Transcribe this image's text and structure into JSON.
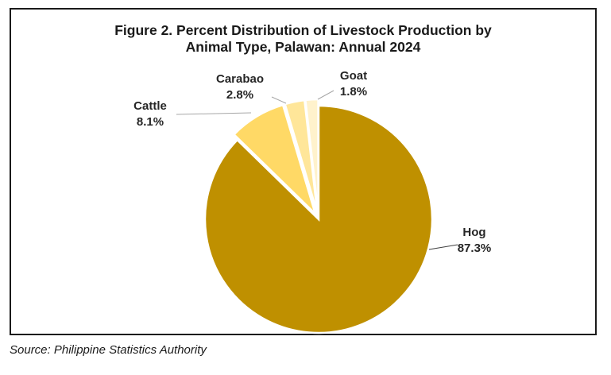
{
  "chart_data": {
    "type": "pie",
    "title_lines": [
      "Figure 2. Percent Distribution of Livestock Production by",
      "Animal Type, Palawan: Annual 2024"
    ],
    "slices": [
      {
        "label": "Hog",
        "value": 87.3,
        "value_label": "87.3%",
        "color": "#BF9000",
        "exploded": false
      },
      {
        "label": "Cattle",
        "value": 8.1,
        "value_label": "8.1%",
        "color": "#FFD966",
        "exploded": true
      },
      {
        "label": "Carabao",
        "value": 2.8,
        "value_label": "2.8%",
        "color": "#FFE699",
        "exploded": true
      },
      {
        "label": "Goat",
        "value": 1.8,
        "value_label": "1.8%",
        "color": "#FFF2CC",
        "exploded": true
      }
    ],
    "legend": "none",
    "data_labels": "outside with leader lines"
  },
  "source": "Source: Philippine Statistics Authority"
}
